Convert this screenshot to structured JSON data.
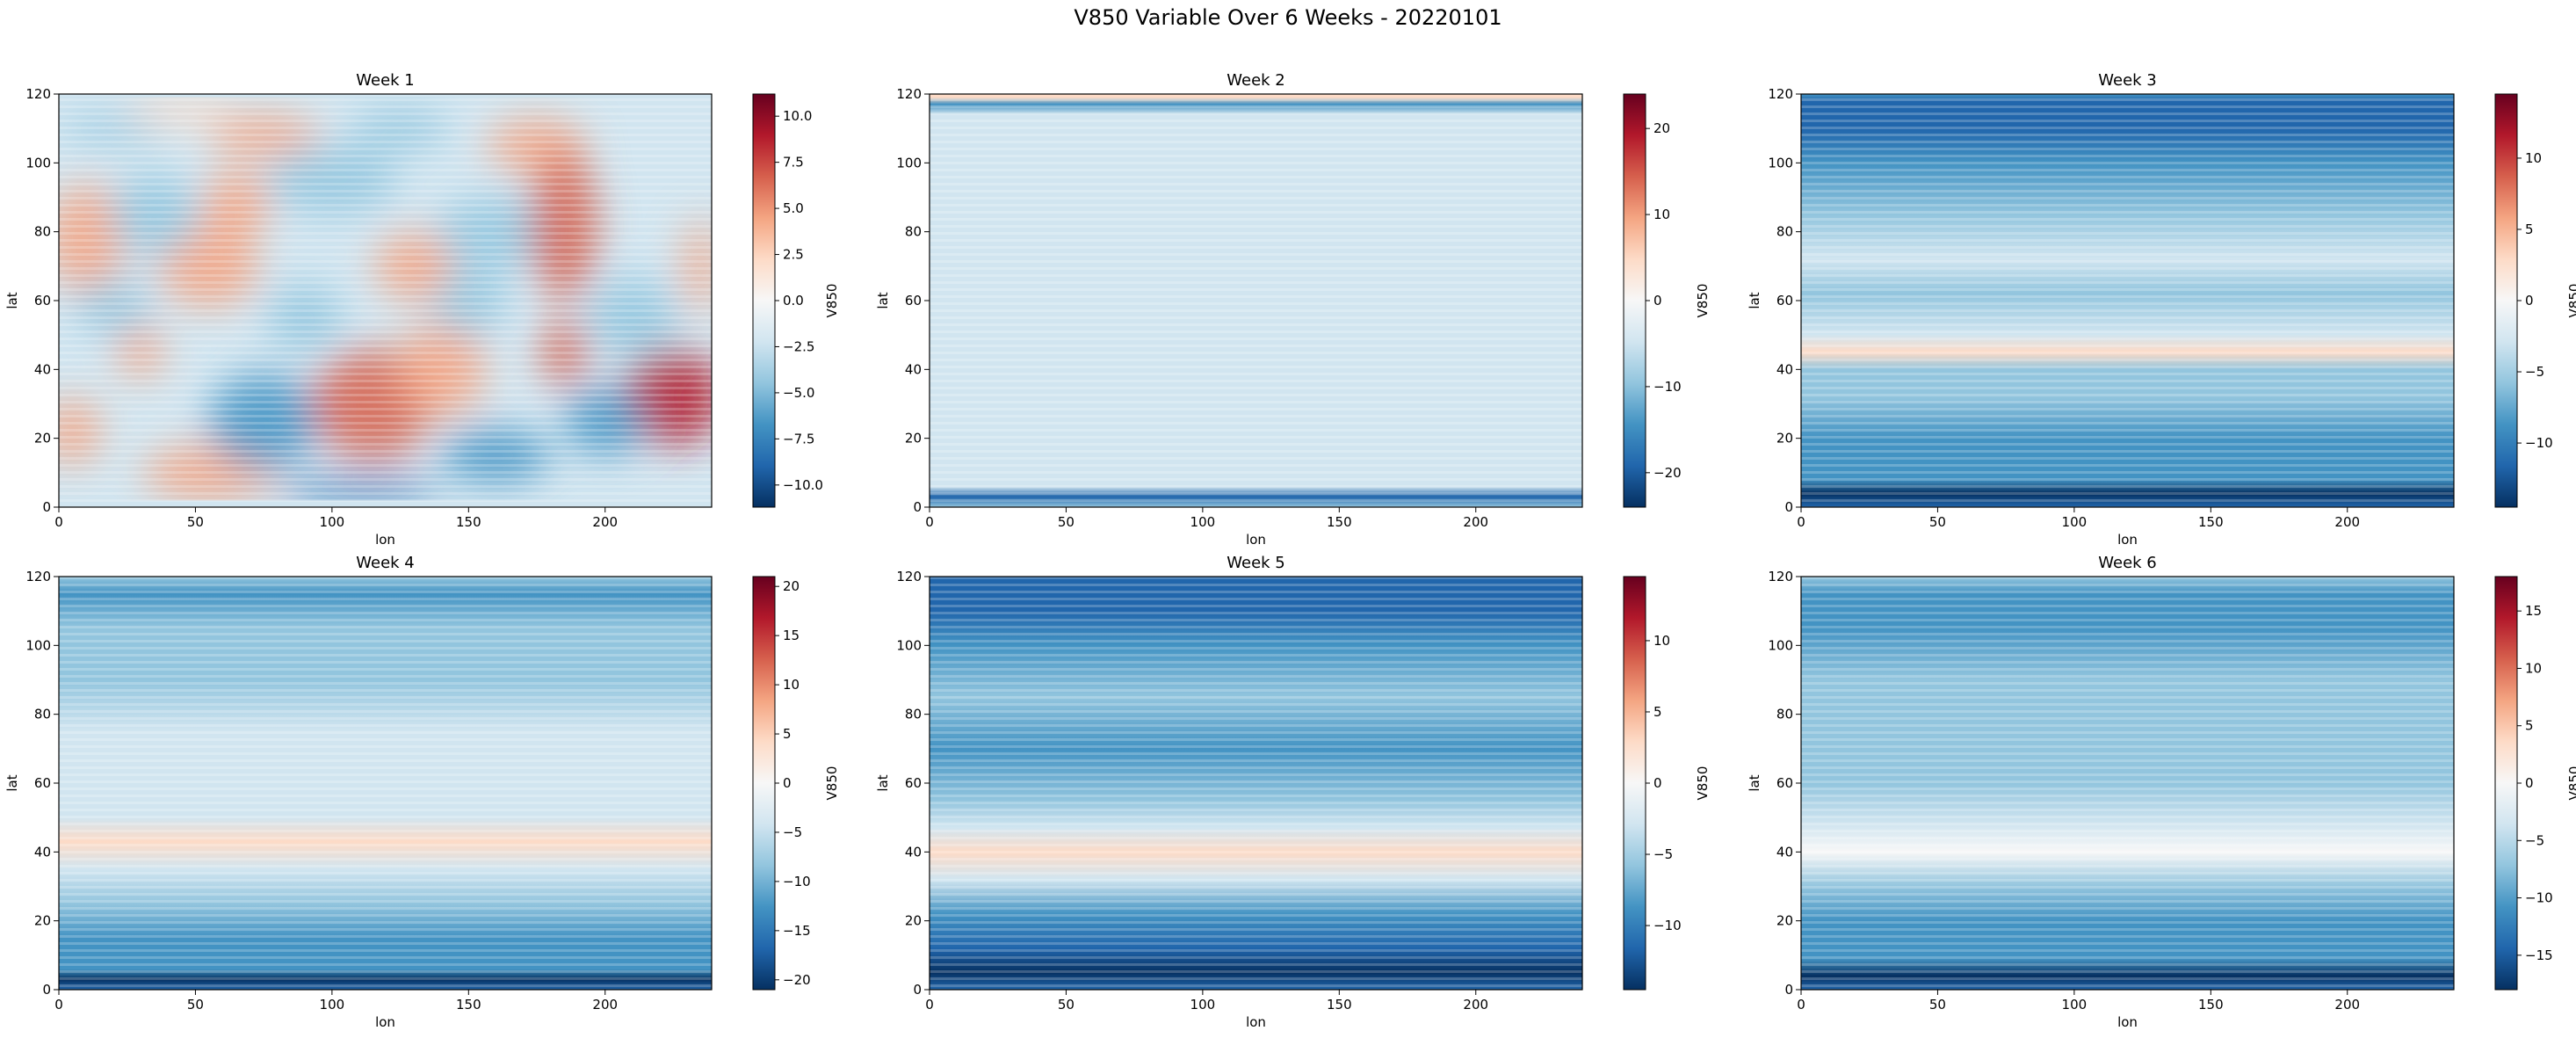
{
  "figure": {
    "suptitle": "V850 Variable Over 6 Weeks - 20220101"
  },
  "colormap": {
    "name": "RdBu_r",
    "stops": [
      "#053061",
      "#2166ac",
      "#4393c3",
      "#92c5de",
      "#d1e5f0",
      "#f7f7f7",
      "#fddbc7",
      "#f4a582",
      "#d6604d",
      "#b2182b",
      "#67001f"
    ]
  },
  "chart_data": [
    {
      "type": "heatmap",
      "title": "Week 1",
      "xlabel": "lon",
      "ylabel": "lat",
      "cbar_label": "V850",
      "xlim": [
        0,
        239
      ],
      "ylim": [
        0,
        120
      ],
      "xticks": [
        0,
        50,
        100,
        150,
        200
      ],
      "yticks": [
        0,
        20,
        40,
        60,
        80,
        100,
        120
      ],
      "cbar_range": [
        -11.2,
        11.2
      ],
      "cbar_ticks": [
        -10.0,
        -7.5,
        -5.0,
        -2.5,
        0.0,
        2.5,
        5.0,
        7.5,
        10.0
      ],
      "cbar_tick_labels": [
        "−10.0",
        "−7.5",
        "−5.0",
        "−2.5",
        "0.0",
        "2.5",
        "5.0",
        "7.5",
        "10.0"
      ]
    },
    {
      "type": "heatmap",
      "title": "Week 2",
      "xlabel": "lon",
      "ylabel": "lat",
      "cbar_label": "V850",
      "xlim": [
        0,
        239
      ],
      "ylim": [
        0,
        120
      ],
      "xticks": [
        0,
        50,
        100,
        150,
        200
      ],
      "yticks": [
        0,
        20,
        40,
        60,
        80,
        100,
        120
      ],
      "cbar_range": [
        -24,
        24
      ],
      "cbar_ticks": [
        -20,
        -10,
        0,
        10,
        20
      ],
      "cbar_tick_labels": [
        "−20",
        "−10",
        "0",
        "10",
        "20"
      ]
    },
    {
      "type": "heatmap",
      "title": "Week 3",
      "xlabel": "lon",
      "ylabel": "lat",
      "cbar_label": "V850",
      "xlim": [
        0,
        239
      ],
      "ylim": [
        0,
        120
      ],
      "xticks": [
        0,
        50,
        100,
        150,
        200
      ],
      "yticks": [
        0,
        20,
        40,
        60,
        80,
        100,
        120
      ],
      "cbar_range": [
        -14.5,
        14.5
      ],
      "cbar_ticks": [
        -10,
        -5,
        0,
        5,
        10
      ],
      "cbar_tick_labels": [
        "−10",
        "−5",
        "0",
        "5",
        "10"
      ]
    },
    {
      "type": "heatmap",
      "title": "Week 4",
      "xlabel": "lon",
      "ylabel": "lat",
      "cbar_label": "V850",
      "xlim": [
        0,
        239
      ],
      "ylim": [
        0,
        120
      ],
      "xticks": [
        0,
        50,
        100,
        150,
        200
      ],
      "yticks": [
        0,
        20,
        40,
        60,
        80,
        100,
        120
      ],
      "cbar_range": [
        -21,
        21
      ],
      "cbar_ticks": [
        -20,
        -15,
        -10,
        -5,
        0,
        5,
        10,
        15,
        20
      ],
      "cbar_tick_labels": [
        "−20",
        "−15",
        "−10",
        "−5",
        "0",
        "5",
        "10",
        "15",
        "20"
      ]
    },
    {
      "type": "heatmap",
      "title": "Week 5",
      "xlabel": "lon",
      "ylabel": "lat",
      "cbar_label": "V850",
      "xlim": [
        0,
        239
      ],
      "ylim": [
        0,
        120
      ],
      "xticks": [
        0,
        50,
        100,
        150,
        200
      ],
      "yticks": [
        0,
        20,
        40,
        60,
        80,
        100,
        120
      ],
      "cbar_range": [
        -14.5,
        14.5
      ],
      "cbar_ticks": [
        -10,
        -5,
        0,
        5,
        10
      ],
      "cbar_tick_labels": [
        "−10",
        "−5",
        "0",
        "5",
        "10"
      ]
    },
    {
      "type": "heatmap",
      "title": "Week 6",
      "xlabel": "lon",
      "ylabel": "lat",
      "cbar_label": "V850",
      "xlim": [
        0,
        239
      ],
      "ylim": [
        0,
        120
      ],
      "xticks": [
        0,
        50,
        100,
        150,
        200
      ],
      "yticks": [
        0,
        20,
        40,
        60,
        80,
        100,
        120
      ],
      "cbar_range": [
        -18,
        18
      ],
      "cbar_ticks": [
        -15,
        -10,
        -5,
        0,
        5,
        10,
        15
      ],
      "cbar_tick_labels": [
        "−15",
        "−10",
        "−5",
        "0",
        "5",
        "10",
        "15"
      ]
    }
  ]
}
